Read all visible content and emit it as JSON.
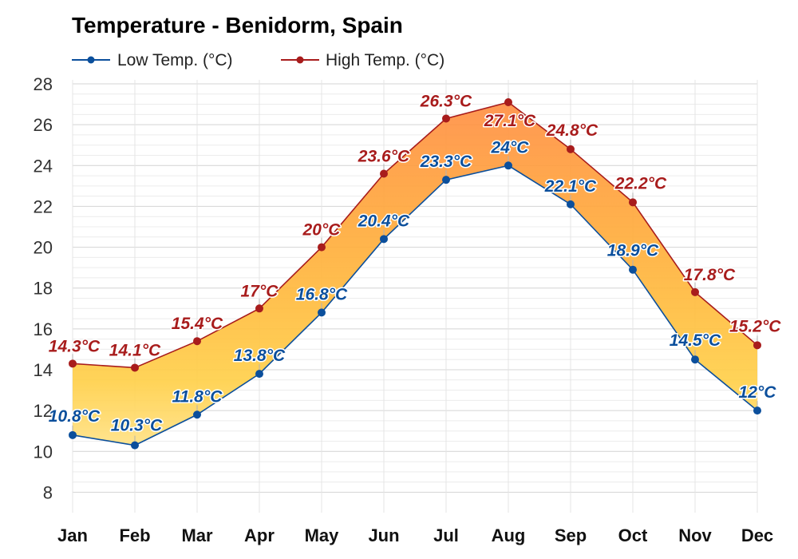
{
  "chart_data": {
    "type": "area",
    "title": "Temperature - Benidorm, Spain",
    "categories": [
      "Jan",
      "Feb",
      "Mar",
      "Apr",
      "May",
      "Jun",
      "Jul",
      "Aug",
      "Sep",
      "Oct",
      "Nov",
      "Dec"
    ],
    "series": [
      {
        "name": "Low Temp. (°C)",
        "color": "#0b4f9c",
        "values": [
          10.8,
          10.3,
          11.8,
          13.8,
          16.8,
          20.4,
          23.3,
          24.0,
          22.1,
          18.9,
          14.5,
          12.0
        ],
        "labels": [
          "10.8°C",
          "10.3°C",
          "11.8°C",
          "13.8°C",
          "16.8°C",
          "20.4°C",
          "23.3°C",
          "24°C",
          "22.1°C",
          "18.9°C",
          "14.5°C",
          "12°C"
        ]
      },
      {
        "name": "High Temp. (°C)",
        "color": "#a81c1c",
        "values": [
          14.3,
          14.1,
          15.4,
          17.0,
          20.0,
          23.6,
          26.3,
          27.1,
          24.8,
          22.2,
          17.8,
          15.2
        ],
        "labels": [
          "14.3°C",
          "14.1°C",
          "15.4°C",
          "17°C",
          "20°C",
          "23.6°C",
          "26.3°C",
          "27.1°C",
          "24.8°C",
          "22.2°C",
          "17.8°C",
          "15.2°C"
        ]
      }
    ],
    "ylim": [
      7,
      28
    ],
    "yticks": [
      8,
      10,
      12,
      14,
      16,
      18,
      20,
      22,
      24,
      26,
      28
    ],
    "grid": true,
    "legend": "top-left",
    "fill_colors": [
      "#ffe38a",
      "#ffd04a",
      "#ffbe40",
      "#ffae3c",
      "#ff9f3e",
      "#ff8f44"
    ]
  }
}
